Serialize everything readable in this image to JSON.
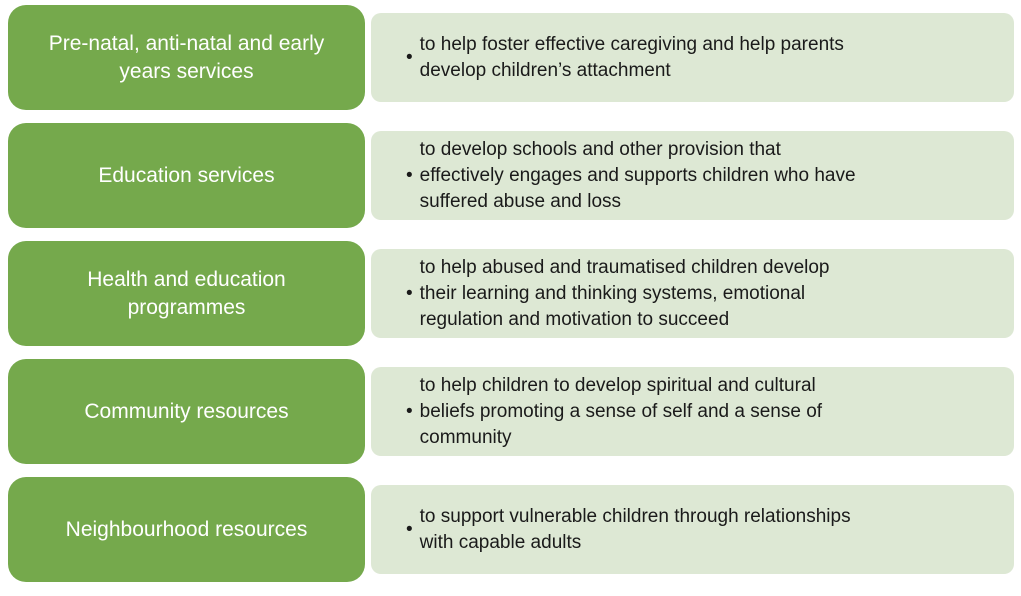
{
  "diagram": {
    "bullet_char": "•",
    "colors": {
      "category_bg": "#75A94C",
      "category_text": "#FFFFFF",
      "description_bg": "#DDE8D4",
      "description_text": "#1A1A1A"
    },
    "rows": [
      {
        "label": "Pre-natal, anti-natal and early\nyears services",
        "description": "to help foster effective caregiving and help parents\ndevelop children’s attachment"
      },
      {
        "label": "Education services",
        "description": "to develop schools and other provision that\neffectively engages and supports children who have\nsuffered abuse and loss"
      },
      {
        "label": "Health and education\nprogrammes",
        "description": "to help abused and traumatised children develop\ntheir learning and thinking systems, emotional\nregulation and motivation to succeed"
      },
      {
        "label": "Community resources",
        "description": "to help children to develop spiritual and cultural\nbeliefs promoting a sense of self and a sense of\ncommunity"
      },
      {
        "label": "Neighbourhood resources",
        "description": "to support vulnerable children through relationships\nwith capable adults"
      }
    ]
  }
}
